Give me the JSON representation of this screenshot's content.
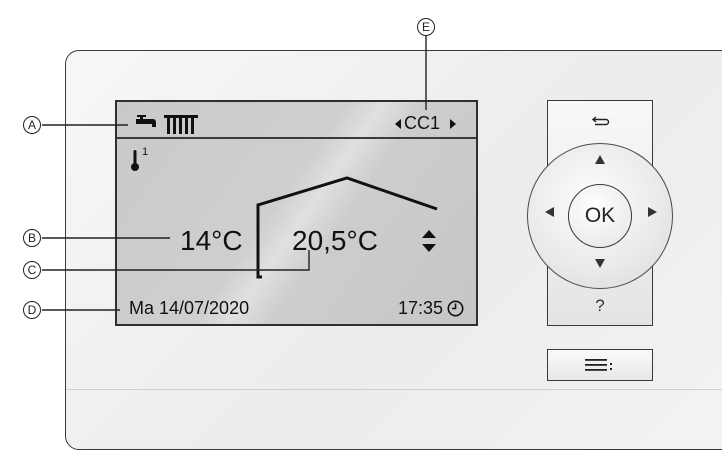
{
  "callouts": {
    "a": "A",
    "b": "B",
    "c": "C",
    "d": "D",
    "e": "E"
  },
  "display": {
    "circuit": "CC1",
    "sensor_index": "1",
    "outdoor_temp": "14°C",
    "setpoint_temp": "20,5°C",
    "date": "Ma 14/07/2020",
    "time": "17:35"
  },
  "controls": {
    "ok_label": "OK",
    "help_label": "?"
  },
  "icons": {
    "tap": "hot-water-tap-icon",
    "radiator": "radiator-icon",
    "thermometer": "thermometer-icon",
    "clock": "clock-icon",
    "back": "back-icon",
    "menu": "menu-icon",
    "circuit_prev": "arrow-left-icon",
    "circuit_next": "arrow-right-icon",
    "setpoint_adjust": "up-down-icon"
  }
}
